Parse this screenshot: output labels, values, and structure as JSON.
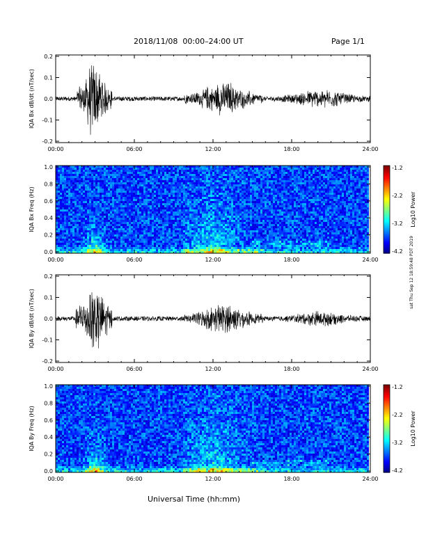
{
  "header": {
    "title": "2018/11/08  00:00–24:00 UT",
    "page": "Page 1/1"
  },
  "side_note": "sat Thu Sep 12 18:59:48 PDT 2019",
  "x_axis_title": "Universal Time (hh:mm)",
  "chart_data": [
    {
      "type": "line",
      "ylabel": "IQA Bx dB/dt (nT/sec)",
      "xlim": [
        0,
        24
      ],
      "ylim": [
        -0.2,
        0.2
      ],
      "xticks": [
        "00:00",
        "06:00",
        "12:00",
        "18:00",
        "24:00"
      ],
      "yticks": [
        "0.2",
        "0.1",
        "0.0",
        "-0.1",
        "-0.2"
      ],
      "activity_windows": [
        {
          "start": 1.6,
          "end": 4.3,
          "peak": 0.2
        },
        {
          "start": 9.8,
          "end": 15.8,
          "peak": 0.09
        },
        {
          "start": 16.5,
          "end": 24.0,
          "peak": 0.05
        }
      ],
      "baseline_amplitude": 0.01
    },
    {
      "type": "heatmap",
      "ylabel": "IQA Bx Freq (Hz)",
      "xlim": [
        0,
        24
      ],
      "ylim": [
        0,
        1.0
      ],
      "xticks": [
        "00:00",
        "06:00",
        "12:00",
        "18:00",
        "24:00"
      ],
      "yticks": [
        "1.0",
        "0.8",
        "0.6",
        "0.4",
        "0.2",
        "0.0"
      ],
      "colorbar": {
        "label": "Log10 Power",
        "range": [
          -4.2,
          -1.2
        ],
        "ticks": [
          "-1.2",
          "-2.2",
          "-3.2",
          "-4.2"
        ]
      }
    },
    {
      "type": "line",
      "ylabel": "IQA By dB/dt (nT/sec)",
      "xlim": [
        0,
        24
      ],
      "ylim": [
        -0.2,
        0.2
      ],
      "xticks": [
        "00:00",
        "06:00",
        "12:00",
        "18:00",
        "24:00"
      ],
      "yticks": [
        "0.2",
        "0.1",
        "0.0",
        "-0.1",
        "-0.2"
      ],
      "activity_windows": [
        {
          "start": 1.5,
          "end": 4.3,
          "peak": 0.2
        },
        {
          "start": 9.8,
          "end": 15.8,
          "peak": 0.08
        },
        {
          "start": 16.5,
          "end": 24.0,
          "peak": 0.04
        }
      ],
      "baseline_amplitude": 0.01
    },
    {
      "type": "heatmap",
      "ylabel": "IQA By Freq (Hz)",
      "xlim": [
        0,
        24
      ],
      "ylim": [
        0,
        1.0
      ],
      "xticks": [
        "00:00",
        "06:00",
        "12:00",
        "18:00",
        "24:00"
      ],
      "yticks": [
        "1.0",
        "0.8",
        "0.6",
        "0.4",
        "0.2",
        "0.0"
      ],
      "colorbar": {
        "label": "Log10 Power",
        "range": [
          -4.2,
          -1.2
        ],
        "ticks": [
          "-1.2",
          "-2.2",
          "-3.2",
          "-4.2"
        ]
      }
    }
  ]
}
